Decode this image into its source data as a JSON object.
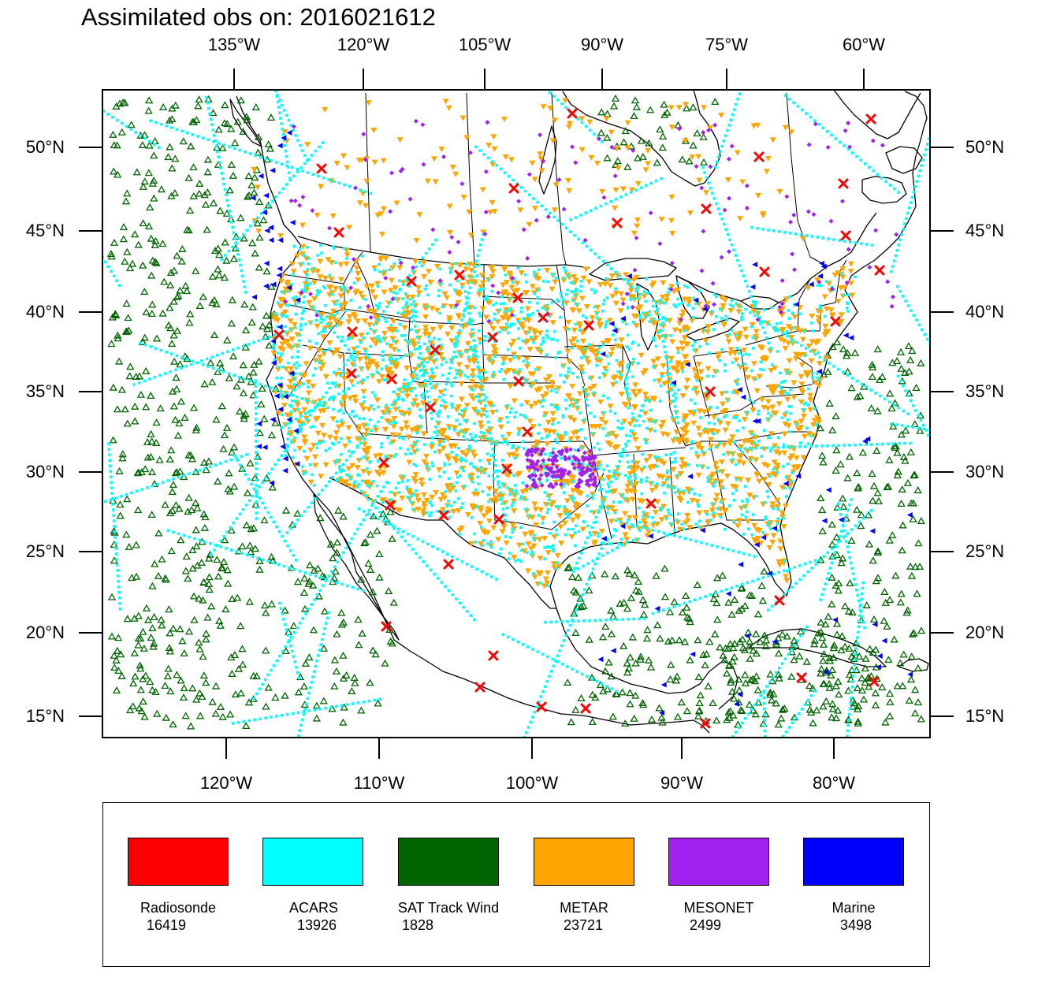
{
  "title": "Assimilated obs on: 2016021612",
  "axes": {
    "top_lon_labels": [
      "135°W",
      "120°W",
      "105°W",
      "90°W",
      "75°W",
      "60°W"
    ],
    "bottom_lon_labels": [
      "120°W",
      "110°W",
      "100°W",
      "90°W",
      "80°W"
    ],
    "lat_labels": [
      "50°N",
      "45°N",
      "40°N",
      "35°N",
      "30°N",
      "25°N",
      "20°N",
      "15°N"
    ]
  },
  "map": {
    "projection": "Lambert conformal",
    "domain": "Contiguous United States with adjacent Pacific, Atlantic, Gulf of Mexico and Caribbean",
    "grid_lines": false,
    "boundaries": [
      "coastlines",
      "country borders",
      "US state borders",
      "Canadian province borders"
    ]
  },
  "legend": [
    {
      "name": "Radiosonde",
      "count": "16419",
      "color": "#ff0000",
      "marker": "x-icon"
    },
    {
      "name": "ACARS",
      "count": "13926",
      "color": "#00ffff",
      "marker": "square-dot-icon"
    },
    {
      "name": "SAT Track Wind",
      "count": "1828",
      "color": "#006400",
      "marker": "triangle-up-outline-icon"
    },
    {
      "name": "METAR",
      "count": "23721",
      "color": "#ffa500",
      "marker": "triangle-down-icon"
    },
    {
      "name": "MESONET",
      "count": "2499",
      "color": "#a020f0",
      "marker": "diamond-icon"
    },
    {
      "name": "Marine",
      "count": "3498",
      "color": "#0000ff",
      "marker": "triangle-left-icon"
    }
  ]
}
